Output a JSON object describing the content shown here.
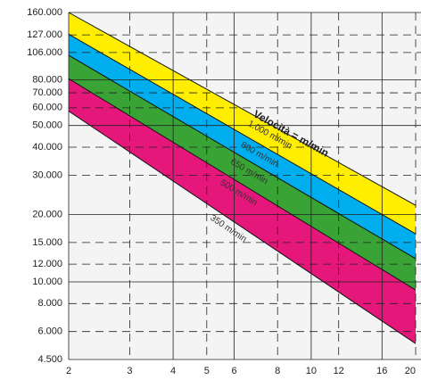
{
  "chart_data": {
    "type": "band",
    "annotation": "Velocità = m/min",
    "x": [
      2,
      20
    ],
    "series": [
      {
        "name": "1.000 m/min",
        "values": [
          160000,
          22000
        ]
      },
      {
        "name": "800 m/min",
        "values": [
          128000,
          16400
        ]
      },
      {
        "name": "650 m/min",
        "values": [
          103000,
          12700
        ]
      },
      {
        "name": "500 m/min",
        "values": [
          81000,
          9200
        ]
      },
      {
        "name": "350 m/min",
        "values": [
          58000,
          5300
        ]
      }
    ],
    "band_colors": [
      "#ffee00",
      "#00aeef",
      "#3aa335",
      "#e5177b"
    ],
    "xscale": "log",
    "yscale": "log",
    "xlim": [
      2,
      20
    ],
    "ylim": [
      4500,
      160000
    ],
    "xticks": [
      2,
      3,
      4,
      5,
      6,
      8,
      10,
      12,
      16,
      20
    ],
    "yticks": [
      {
        "value": 160000,
        "label": "160.000"
      },
      {
        "value": 127000,
        "label": "127.000"
      },
      {
        "value": 106000,
        "label": "106.000"
      },
      {
        "value": 80000,
        "label": "80.000"
      },
      {
        "value": 70000,
        "label": "70.000"
      },
      {
        "value": 60000,
        "label": "60.000"
      },
      {
        "value": 50000,
        "label": "50.000"
      },
      {
        "value": 40000,
        "label": "40.000"
      },
      {
        "value": 30000,
        "label": "30.000"
      },
      {
        "value": 20000,
        "label": "20.000"
      },
      {
        "value": 15000,
        "label": "15.000"
      },
      {
        "value": 12000,
        "label": "12.000"
      },
      {
        "value": 10000,
        "label": "10.000"
      },
      {
        "value": 8000,
        "label": "8.000"
      },
      {
        "value": 6000,
        "label": "6.000"
      },
      {
        "value": 4500,
        "label": "4.500"
      }
    ],
    "grid": true
  }
}
